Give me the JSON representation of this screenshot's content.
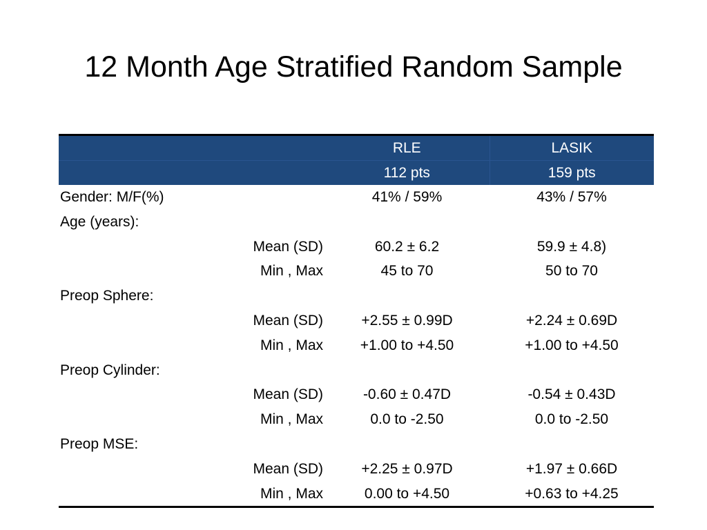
{
  "title": "12 Month Age Stratified Random Sample",
  "table": {
    "header": {
      "rle_name": "RLE",
      "lasik_name": "LASIK",
      "rle_count": "112 pts",
      "lasik_count": "159 pts"
    },
    "rows": [
      {
        "label": "Gender: M/F(%)",
        "stat": "",
        "rle": "41% / 59%",
        "lasik": "43% / 57%"
      },
      {
        "label": "Age (years):",
        "stat": "",
        "rle": "",
        "lasik": ""
      },
      {
        "label": "",
        "stat": "Mean (SD)",
        "rle": "60.2 ± 6.2",
        "lasik": "59.9 ± 4.8)"
      },
      {
        "label": "",
        "stat": "Min , Max",
        "rle": "45 to 70",
        "lasik": "50 to 70"
      },
      {
        "label": "Preop Sphere:",
        "stat": "",
        "rle": "",
        "lasik": ""
      },
      {
        "label": "",
        "stat": "Mean (SD)",
        "rle": "+2.55 ± 0.99D",
        "lasik": "+2.24 ± 0.69D"
      },
      {
        "label": "",
        "stat": "Min , Max",
        "rle": "+1.00 to +4.50",
        "lasik": "+1.00 to +4.50"
      },
      {
        "label": "Preop Cylinder:",
        "stat": "",
        "rle": "",
        "lasik": ""
      },
      {
        "label": "",
        "stat": "Mean (SD)",
        "rle": "-0.60 ± 0.47D",
        "lasik": "-0.54 ± 0.43D"
      },
      {
        "label": "",
        "stat": "Min , Max",
        "rle": "0.0 to -2.50",
        "lasik": "0.0 to -2.50"
      },
      {
        "label": "Preop MSE:",
        "stat": "",
        "rle": "",
        "lasik": ""
      },
      {
        "label": "",
        "stat": "Mean (SD)",
        "rle": "+2.25 ± 0.97D",
        "lasik": "+1.97 ± 0.66D"
      },
      {
        "label": "",
        "stat": "Min , Max",
        "rle": "0.00 to +4.50",
        "lasik": "+0.63 to +4.25"
      }
    ]
  },
  "colors": {
    "header_background": "#1f497d",
    "header_text": "#ffffff",
    "body_text": "#000000"
  }
}
